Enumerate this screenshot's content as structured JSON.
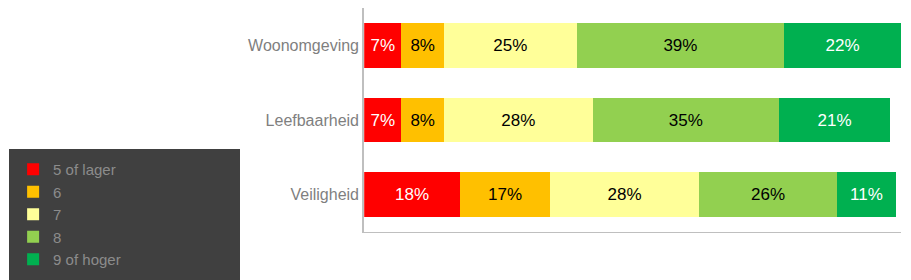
{
  "chart_data": {
    "type": "bar",
    "orientation": "horizontal",
    "stacked": true,
    "data_labels": true,
    "tick_labels": "y",
    "legend": "bottom",
    "categories": [
      "Woonomgeving",
      "Leefbaarheid",
      "Veiligheid"
    ],
    "xlim": [
      0,
      101
    ],
    "xticks": [],
    "series": [
      {
        "name": "5 of lager",
        "color": "#ff0000",
        "values": [
          7,
          7,
          18
        ],
        "value_labels": [
          "7%",
          "7%",
          "18%"
        ]
      },
      {
        "name": "6",
        "color": "#ffc000",
        "values": [
          8,
          8,
          17
        ],
        "value_labels": [
          "8%",
          "8%",
          "17%"
        ]
      },
      {
        "name": "7",
        "color": "#ffff99",
        "values": [
          25,
          28,
          28
        ],
        "value_labels": [
          "25%",
          "28%",
          "28%"
        ]
      },
      {
        "name": "8",
        "color": "#92d050",
        "values": [
          39,
          35,
          26
        ],
        "value_labels": [
          "39%",
          "35%",
          "26%"
        ]
      },
      {
        "name": "9 of hoger",
        "color": "#00b050",
        "values": [
          22,
          21,
          11
        ],
        "value_labels": [
          "22%",
          "21%",
          "11%"
        ]
      }
    ]
  }
}
